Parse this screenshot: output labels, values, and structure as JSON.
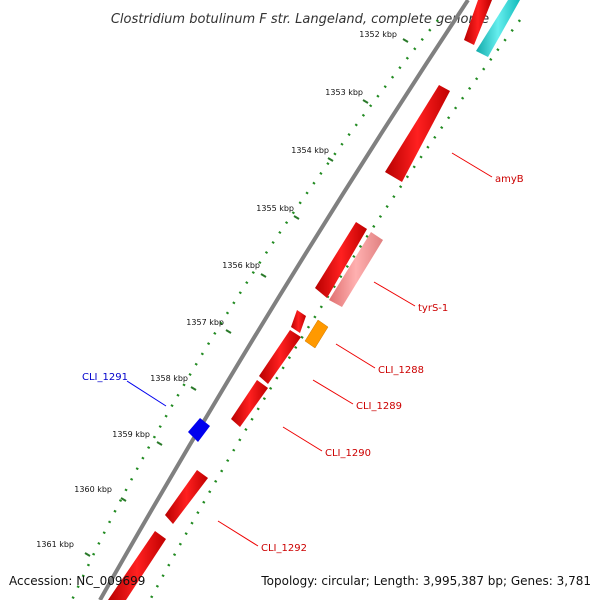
{
  "title": "Clostridium botulinum F str. Langeland, complete genome",
  "footer": {
    "accession": "Accession: NC_009699",
    "topology": "Topology: circular; Length: 3,995,387 bp; Genes: 3,781"
  },
  "ticks": [
    {
      "label": "1352 kbp"
    },
    {
      "label": "1353 kbp"
    },
    {
      "label": "1354 kbp"
    },
    {
      "label": "1355 kbp"
    },
    {
      "label": "1356 kbp"
    },
    {
      "label": "1357 kbp"
    },
    {
      "label": "1358 kbp"
    },
    {
      "label": "1359 kbp"
    },
    {
      "label": "1360 kbp"
    },
    {
      "label": "1361 kbp"
    }
  ],
  "gene_labels": [
    {
      "id": "amyB",
      "text": "amyB",
      "color": "#cc0000"
    },
    {
      "id": "tyrS-1",
      "text": "tyrS-1",
      "color": "#cc0000"
    },
    {
      "id": "CLI_1288",
      "text": "CLI_1288",
      "color": "#cc0000"
    },
    {
      "id": "CLI_1289",
      "text": "CLI_1289",
      "color": "#cc0000"
    },
    {
      "id": "CLI_1290",
      "text": "CLI_1290",
      "color": "#cc0000"
    },
    {
      "id": "CLI_1291",
      "text": "CLI_1291",
      "color": "#0000cc"
    },
    {
      "id": "CLI_1292",
      "text": "CLI_1292",
      "color": "#cc0000"
    }
  ],
  "colors": {
    "backbone": "#808080",
    "forward_gene": "#ee0000",
    "trna_gene": "#f08080",
    "orange_feature": "#ff9900",
    "blue_gene": "#0000ee",
    "cyan_feature": "#22cccc",
    "tick_dots": "#228b22",
    "label_line": "#ee0000"
  }
}
